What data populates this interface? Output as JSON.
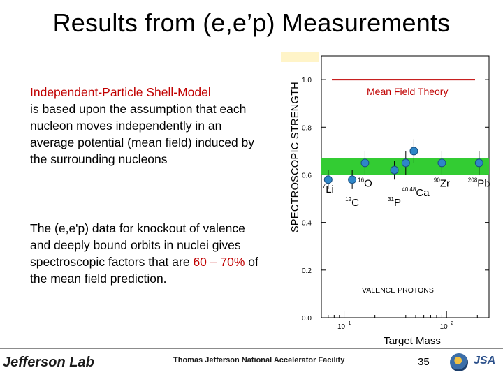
{
  "slide": {
    "title": "Results from (e,e’p) Measurements",
    "para1": {
      "lead": "Independent-Particle Shell-Model",
      "body": "is based upon the assumption that each nucleon moves independently in an average potential (mean field) induced by the surrounding nucleons",
      "lead_color": "#c00000"
    },
    "para2": {
      "before": "The (e,e'p) data for knockout of valence and deeply bound orbits in nuclei gives spectroscopic factors that are ",
      "highlight": "60 – 70%",
      "after": " of the mean field prediction.",
      "highlight_color": "#c00000"
    },
    "page_number": "35"
  },
  "footer": {
    "logo": "Jefferson Lab",
    "facility": "Thomas Jefferson National Accelerator Facility",
    "partner": "JSA"
  },
  "chart_data": {
    "type": "scatter",
    "ylabel": "SPECTROSCOPIC STRENGTH",
    "xlabel": "Target Mass",
    "x_scale": "log",
    "xlim": [
      6,
      260
    ],
    "ylim": [
      0.0,
      1.1
    ],
    "y_ticks": [
      {
        "value": 0.0,
        "label": "0.0"
      },
      {
        "value": 0.2,
        "label": "0.2"
      },
      {
        "value": 0.4,
        "label": "0.4"
      },
      {
        "value": 0.6,
        "label": "0.6"
      },
      {
        "value": 0.8,
        "label": "0.8"
      },
      {
        "value": 1.0,
        "label": "1.0"
      }
    ],
    "x_ticks": [
      {
        "value": 10,
        "base": "10",
        "exp": "1"
      },
      {
        "value": 100,
        "base": "10",
        "exp": "2"
      }
    ],
    "reference_line": {
      "label": "Mean Field Theory",
      "y": 1.0,
      "color": "#c00000"
    },
    "band": {
      "y_low": 0.6,
      "y_high": 0.67,
      "color": "#33cc33"
    },
    "inner_label": "VALENCE PROTONS",
    "points": [
      {
        "nucleus": "7Li",
        "x": 7,
        "y": 0.58,
        "err": 0.04
      },
      {
        "nucleus": "12C",
        "x": 12,
        "y": 0.58,
        "err": 0.04
      },
      {
        "nucleus": "16O",
        "x": 16,
        "y": 0.65,
        "err": 0.05
      },
      {
        "nucleus": "31P",
        "x": 31,
        "y": 0.62,
        "err": 0.04
      },
      {
        "nucleus": "40Ca",
        "x": 40,
        "y": 0.65,
        "err": 0.05
      },
      {
        "nucleus": "48Ca",
        "x": 48,
        "y": 0.7,
        "err": 0.05
      },
      {
        "nucleus": "90Zr",
        "x": 90,
        "y": 0.65,
        "err": 0.05
      },
      {
        "nucleus": "208Pb",
        "x": 208,
        "y": 0.65,
        "err": 0.05
      }
    ],
    "point_labels": [
      {
        "mass": "7",
        "sym": "Li",
        "x": 7,
        "y": 0.525
      },
      {
        "mass": "12",
        "sym": "C",
        "x": 12,
        "y": 0.47
      },
      {
        "mass": "16",
        "sym": "O",
        "x": 16,
        "y": 0.55
      },
      {
        "mass": "31",
        "sym": "P",
        "x": 31,
        "y": 0.47
      },
      {
        "mass": "40,48",
        "sym": "Ca",
        "x": 50,
        "y": 0.51
      },
      {
        "mass": "90",
        "sym": "Zr",
        "x": 90,
        "y": 0.55
      },
      {
        "mass": "208",
        "sym": "Pb",
        "x": 208,
        "y": 0.55
      }
    ],
    "marker_color": "#2e86c8"
  }
}
